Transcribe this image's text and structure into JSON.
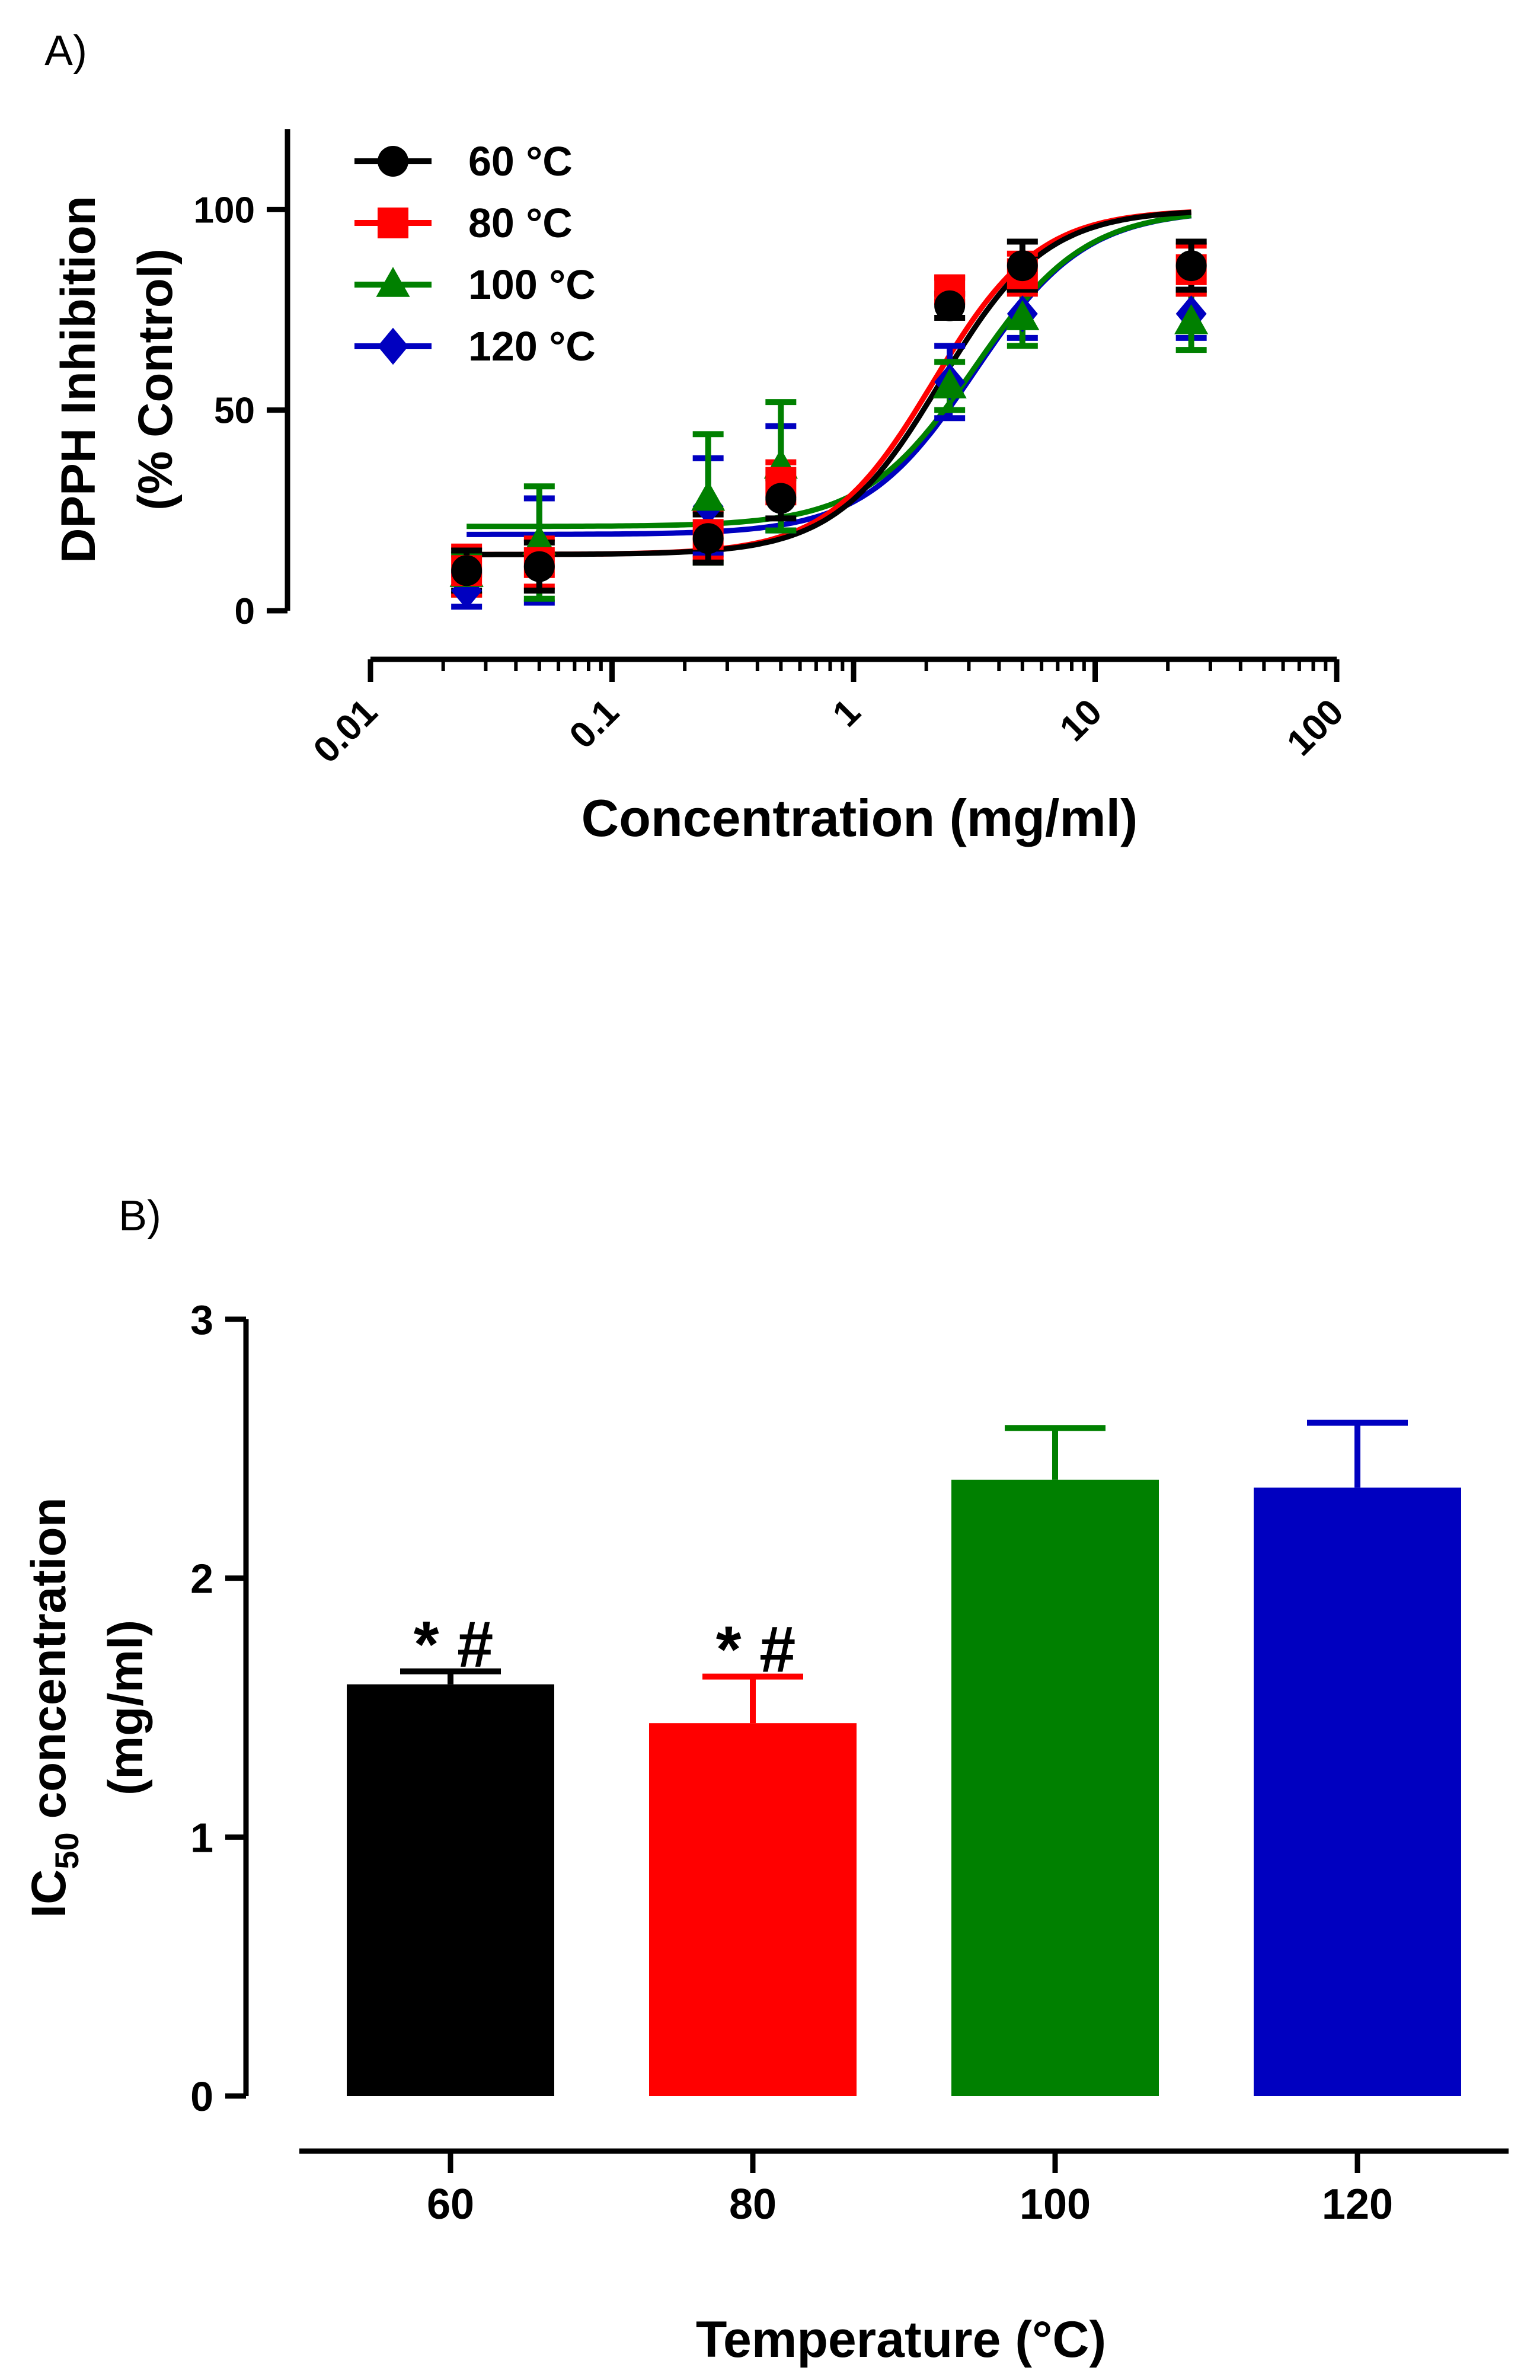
{
  "chart_data": [
    {
      "type": "line",
      "panel_label": "A)",
      "title": "",
      "xlabel": "Concentration (mg/ml)",
      "ylabel_line1": "DPPH Inhibition",
      "ylabel_line2": "(% Control)",
      "xscale": "log",
      "xlim": [
        0.01,
        100
      ],
      "ylim": [
        0,
        120
      ],
      "x_ticks": [
        0.01,
        0.1,
        1,
        10,
        100
      ],
      "x_tick_labels": [
        "0.01",
        "0.1",
        "1",
        "10",
        "100"
      ],
      "y_ticks": [
        0,
        50,
        100
      ],
      "y_tick_labels": [
        "0",
        "50",
        "100"
      ],
      "legend_position": "top-left",
      "x": [
        0.025,
        0.05,
        0.25,
        0.5,
        2.5,
        5,
        25
      ],
      "series": [
        {
          "name": "60 °C",
          "color": "#000000",
          "marker": "circle",
          "values": [
            10,
            11,
            18,
            28,
            76,
            86,
            86
          ],
          "errors": [
            5,
            6,
            6,
            5,
            3,
            6,
            6
          ],
          "fit": {
            "bottom": 14,
            "top": 100,
            "log_ic50": 0.36,
            "hill": 2.0
          }
        },
        {
          "name": "80 °C",
          "color": "#ff0000",
          "marker": "square",
          "values": [
            10,
            12,
            19,
            32,
            80,
            84,
            85
          ],
          "errors": [
            6,
            6,
            6,
            5,
            3,
            5,
            6
          ],
          "fit": {
            "bottom": 14,
            "top": 100,
            "log_ic50": 0.33,
            "hill": 2.0
          }
        },
        {
          "name": "100 °C",
          "color": "#008000",
          "marker": "triangle",
          "values": [
            9,
            17,
            28,
            36,
            56,
            73,
            72
          ],
          "errors": [
            5,
            14,
            16,
            16,
            6,
            7,
            7
          ],
          "fit": {
            "bottom": 21,
            "top": 100,
            "log_ic50": 0.5,
            "hill": 1.9
          }
        },
        {
          "name": "120 °C",
          "color": "#0000c0",
          "marker": "diamond",
          "values": [
            5,
            15,
            26,
            33,
            57,
            74,
            74
          ],
          "errors": [
            4,
            13,
            12,
            13,
            9,
            6,
            6
          ],
          "fit": {
            "bottom": 19,
            "top": 100,
            "log_ic50": 0.5,
            "hill": 1.9
          }
        }
      ]
    },
    {
      "type": "bar",
      "panel_label": "B)",
      "title": "",
      "xlabel": "Temperature (°C)",
      "ylabel_main": "IC",
      "ylabel_sub": "50",
      "ylabel_rest": " concentration",
      "ylabel_line2": "(mg/ml)",
      "ylim": [
        0,
        3
      ],
      "y_ticks": [
        0,
        1,
        2,
        3
      ],
      "y_tick_labels": [
        "0",
        "1",
        "2",
        "3"
      ],
      "categories": [
        "60",
        "80",
        "100",
        "120"
      ],
      "values": [
        1.59,
        1.44,
        2.38,
        2.35
      ],
      "errors": [
        0.05,
        0.18,
        0.2,
        0.25
      ],
      "colors": [
        "#000000",
        "#ff0000",
        "#008000",
        "#0000c0"
      ],
      "annotations": [
        "* #",
        "* #",
        "",
        ""
      ]
    }
  ]
}
